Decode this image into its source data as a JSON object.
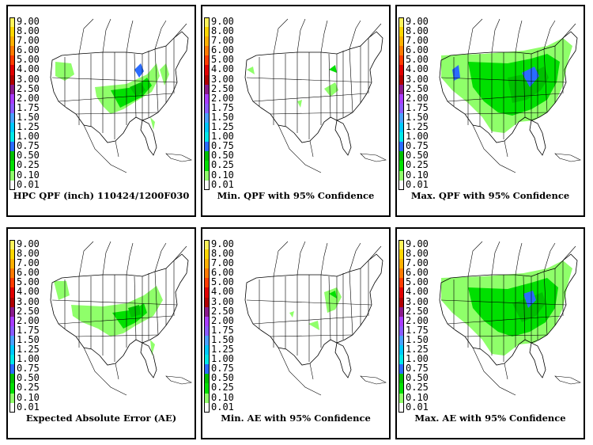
{
  "legend": {
    "labels": [
      "9.00",
      "8.00",
      "7.00",
      "6.00",
      "5.00",
      "4.00",
      "3.00",
      "2.50",
      "2.00",
      "1.75",
      "1.50",
      "1.25",
      "1.00",
      "0.75",
      "0.50",
      "0.25",
      "0.10",
      "0.01"
    ],
    "colors": [
      "#fff35a",
      "#ffd600",
      "#ffb000",
      "#ff7a00",
      "#ff3c00",
      "#e00000",
      "#b00000",
      "#8a1a8a",
      "#a83cff",
      "#8a5aff",
      "#4aa0ff",
      "#00c8ff",
      "#00e8e8",
      "#2a6cff",
      "#00c000",
      "#00e000",
      "#8fff6a",
      "#ffffff"
    ]
  },
  "panels": [
    {
      "caption": "HPC QPF (inch) 110424/1200F030"
    },
    {
      "caption": "Min. QPF with 95% Confidence"
    },
    {
      "caption": "Max. QPF with 95% Confidence"
    },
    {
      "caption": "Expected Absolute Error (AE)"
    },
    {
      "caption": "Min. AE with 95% Confidence"
    },
    {
      "caption": "Max. AE with 95% Confidence"
    }
  ]
}
